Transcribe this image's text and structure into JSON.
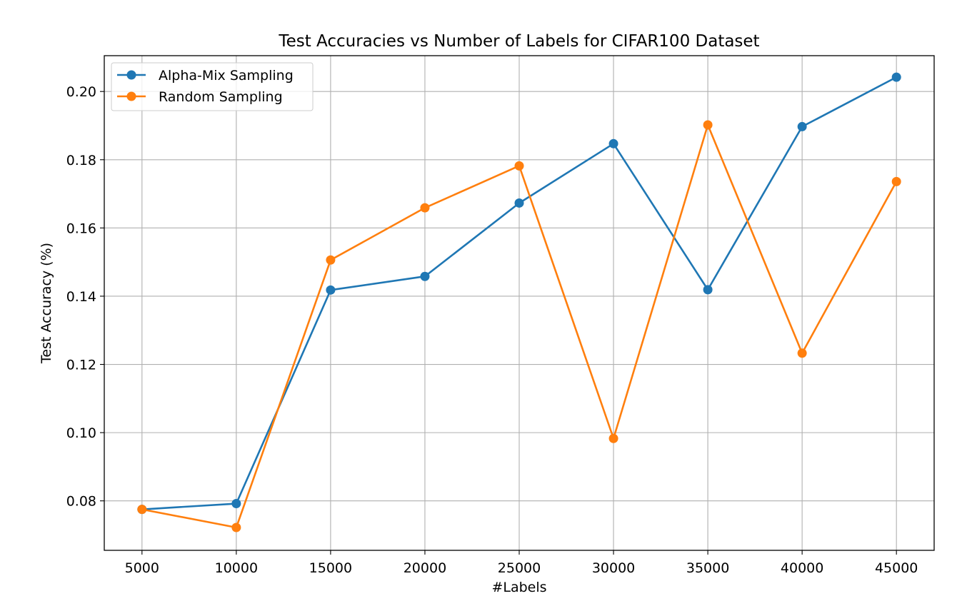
{
  "chart_data": {
    "type": "line",
    "title": "Test Accuracies vs Number of Labels for CIFAR100 Dataset",
    "xlabel": "#Labels",
    "ylabel": "Test Accuracy (%)",
    "x": [
      5000,
      10000,
      15000,
      20000,
      25000,
      30000,
      35000,
      40000,
      45000
    ],
    "xticks": [
      5000,
      10000,
      15000,
      20000,
      25000,
      30000,
      35000,
      40000,
      45000
    ],
    "yticks": [
      0.08,
      0.1,
      0.12,
      0.14,
      0.16,
      0.18,
      0.2
    ],
    "ytick_labels": [
      "0.08",
      "0.10",
      "0.12",
      "0.14",
      "0.16",
      "0.18",
      "0.20"
    ],
    "xlim": [
      3000,
      47000
    ],
    "ylim": [
      0.0655,
      0.2105
    ],
    "grid": true,
    "legend_position": "upper-left",
    "series": [
      {
        "name": "Alpha-Mix Sampling",
        "color": "#1f77b4",
        "marker": "circle",
        "values": [
          0.0775,
          0.0792,
          0.1418,
          0.1458,
          0.1673,
          0.1847,
          0.1419,
          0.1897,
          0.2042
        ]
      },
      {
        "name": "Random Sampling",
        "color": "#ff7f0e",
        "marker": "circle",
        "values": [
          0.0775,
          0.0722,
          0.1506,
          0.1659,
          0.1782,
          0.0983,
          0.1902,
          0.1233,
          0.1736
        ]
      }
    ]
  }
}
